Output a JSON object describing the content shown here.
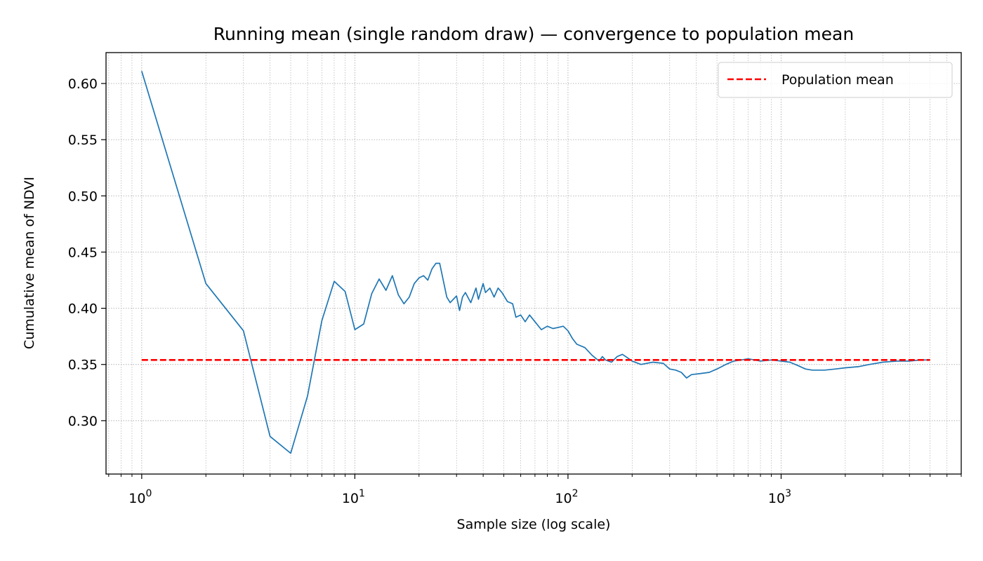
{
  "chart_data": {
    "type": "line",
    "title": "Running mean (single random draw) — convergence to population mean",
    "xlabel": "Sample size (log scale)",
    "ylabel": "Cumulative mean of NDVI",
    "xscale": "log",
    "xlim": [
      0.68,
      7000
    ],
    "ylim": [
      0.2525,
      0.6275
    ],
    "x_ticks": [
      {
        "base": "10",
        "exp": "0",
        "value": 1
      },
      {
        "base": "10",
        "exp": "1",
        "value": 10
      },
      {
        "base": "10",
        "exp": "2",
        "value": 100
      },
      {
        "base": "10",
        "exp": "3",
        "value": 1000
      }
    ],
    "y_ticks": [
      "0.30",
      "0.35",
      "0.40",
      "0.45",
      "0.50",
      "0.55",
      "0.60"
    ],
    "grid": true,
    "legend_position": "top-right",
    "series": [
      {
        "kind": "line",
        "color": "#1f77b4",
        "x": [
          1,
          2,
          3,
          4,
          5,
          6,
          7,
          8,
          9,
          10,
          11,
          12,
          13,
          14,
          15,
          16,
          17,
          18,
          19,
          20,
          21,
          22,
          23,
          24,
          25,
          27,
          28,
          30,
          31,
          32,
          33,
          35,
          37,
          38,
          40,
          41,
          43,
          45,
          47,
          49,
          52,
          55,
          57,
          60,
          63,
          66,
          70,
          75,
          80,
          85,
          90,
          95,
          100,
          105,
          110,
          120,
          130,
          140,
          145,
          150,
          160,
          170,
          180,
          190,
          200,
          220,
          250,
          280,
          300,
          320,
          340,
          360,
          380,
          420,
          460,
          500,
          550,
          600,
          650,
          700,
          750,
          800,
          900,
          1000,
          1100,
          1200,
          1300,
          1400,
          1600,
          1800,
          2000,
          2300,
          2600,
          3000,
          3500,
          4000,
          4500,
          5000
        ],
        "y": [
          0.611,
          0.422,
          0.38,
          0.286,
          0.271,
          0.322,
          0.389,
          0.424,
          0.415,
          0.381,
          0.386,
          0.413,
          0.426,
          0.416,
          0.429,
          0.412,
          0.404,
          0.41,
          0.422,
          0.427,
          0.429,
          0.425,
          0.435,
          0.44,
          0.44,
          0.41,
          0.405,
          0.411,
          0.398,
          0.41,
          0.414,
          0.405,
          0.418,
          0.408,
          0.422,
          0.414,
          0.418,
          0.41,
          0.418,
          0.414,
          0.406,
          0.404,
          0.392,
          0.394,
          0.388,
          0.394,
          0.388,
          0.381,
          0.384,
          0.382,
          0.383,
          0.384,
          0.38,
          0.373,
          0.368,
          0.365,
          0.358,
          0.353,
          0.357,
          0.354,
          0.352,
          0.357,
          0.359,
          0.356,
          0.353,
          0.35,
          0.352,
          0.351,
          0.346,
          0.345,
          0.343,
          0.338,
          0.341,
          0.342,
          0.343,
          0.346,
          0.35,
          0.353,
          0.354,
          0.355,
          0.354,
          0.353,
          0.354,
          0.353,
          0.352,
          0.349,
          0.346,
          0.345,
          0.345,
          0.346,
          0.347,
          0.348,
          0.35,
          0.352,
          0.353,
          0.353,
          0.354,
          0.354
        ]
      },
      {
        "name": "Population mean",
        "kind": "dashed",
        "color": "#ff0000",
        "x": [
          1,
          5000
        ],
        "y": [
          0.354,
          0.354
        ]
      }
    ]
  }
}
